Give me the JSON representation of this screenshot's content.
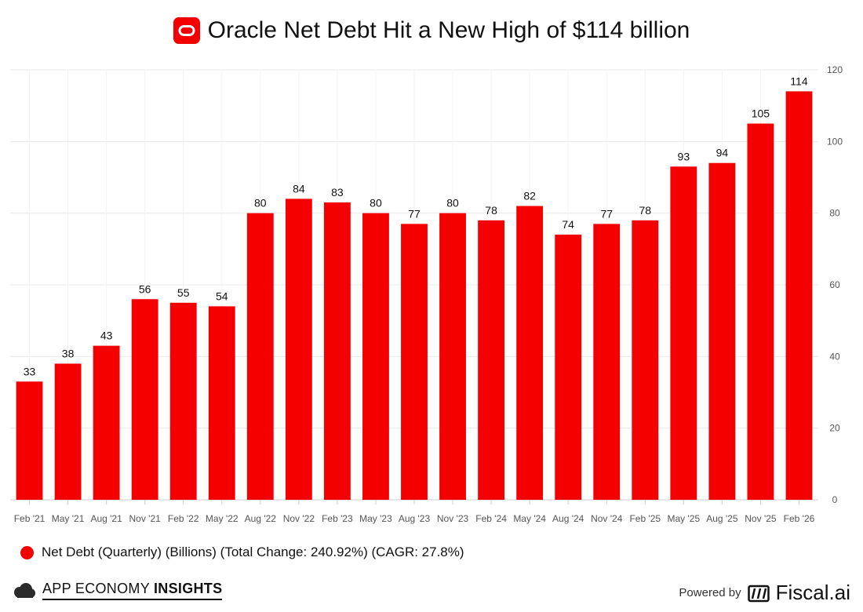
{
  "title": "Oracle Net Debt Hit a New High of $114 billion",
  "colors": {
    "bar": "#f50000",
    "logo": "#f50000",
    "grid": "#e9e9e9",
    "axis": "#cccccc"
  },
  "legend": {
    "label": "Net Debt (Quarterly) (Billions) (Total Change: 240.92%) (CAGR: 27.8%)"
  },
  "footer": {
    "brand_prefix": "APP ECONOMY",
    "brand_suffix": "INSIGHTS",
    "powered_by": "Powered by",
    "provider": "Fiscal.ai"
  },
  "chart_data": {
    "type": "bar",
    "title": "Oracle Net Debt Hit a New High of $114 billion",
    "xlabel": "",
    "ylabel": "",
    "y_axis_side": "right",
    "ylim": [
      0,
      120
    ],
    "yticks": [
      0,
      20,
      40,
      60,
      80,
      100,
      120
    ],
    "grid": true,
    "categories": [
      "Feb '21",
      "May '21",
      "Aug '21",
      "Nov '21",
      "Feb '22",
      "May '22",
      "Aug '22",
      "Nov '22",
      "Feb '23",
      "May '23",
      "Aug '23",
      "Nov '23",
      "Feb '24",
      "May '24",
      "Aug '24",
      "Nov '24",
      "Feb '25",
      "May '25",
      "Aug '25",
      "Nov '25",
      "Feb '26"
    ],
    "series": [
      {
        "name": "Net Debt (Quarterly) (Billions)",
        "values": [
          33,
          38,
          43,
          56,
          55,
          54,
          80,
          84,
          83,
          80,
          77,
          80,
          78,
          82,
          74,
          77,
          78,
          93,
          94,
          105,
          114
        ],
        "labels": [
          "33",
          "38",
          "43",
          "56",
          "55",
          "54",
          "80",
          "84",
          "83",
          "80",
          "77",
          "80",
          "78",
          "82",
          "74",
          "77",
          "78",
          "93",
          "94",
          "105",
          "114"
        ]
      }
    ]
  }
}
